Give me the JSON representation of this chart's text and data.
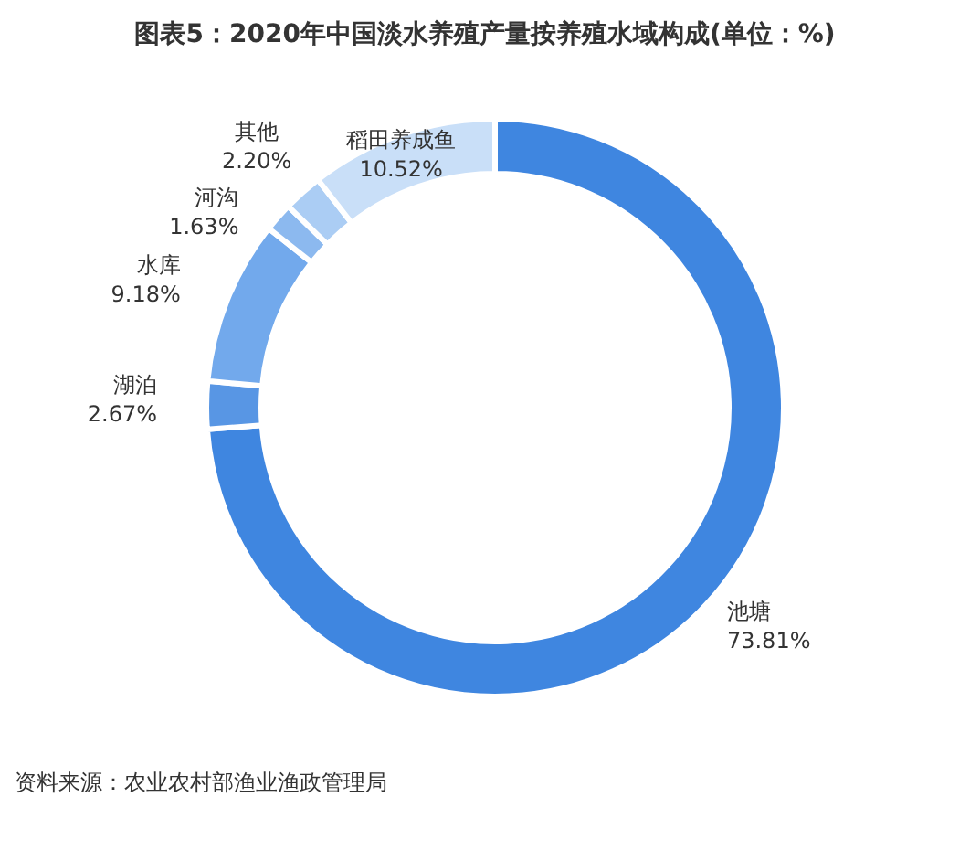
{
  "chart_data": {
    "type": "donut",
    "title": "图表5：2020年中国淡水养殖产量按养殖水域构成(单位：%)",
    "categories": [
      "池塘",
      "湖泊",
      "水库",
      "河沟",
      "其他",
      "稻田养成鱼"
    ],
    "values": [
      73.81,
      2.67,
      9.18,
      1.63,
      2.2,
      10.52
    ],
    "value_labels": [
      "73.81%",
      "2.67%",
      "9.18%",
      "1.63%",
      "2.20%",
      "10.52%"
    ],
    "colors": [
      "#3f86e0",
      "#5896e4",
      "#72a9ec",
      "#8cb9ef",
      "#abcdf4",
      "#c9dff8"
    ],
    "legend": false,
    "annotations": [
      "资料来源：农业农村部渔业渔政管理局"
    ]
  }
}
